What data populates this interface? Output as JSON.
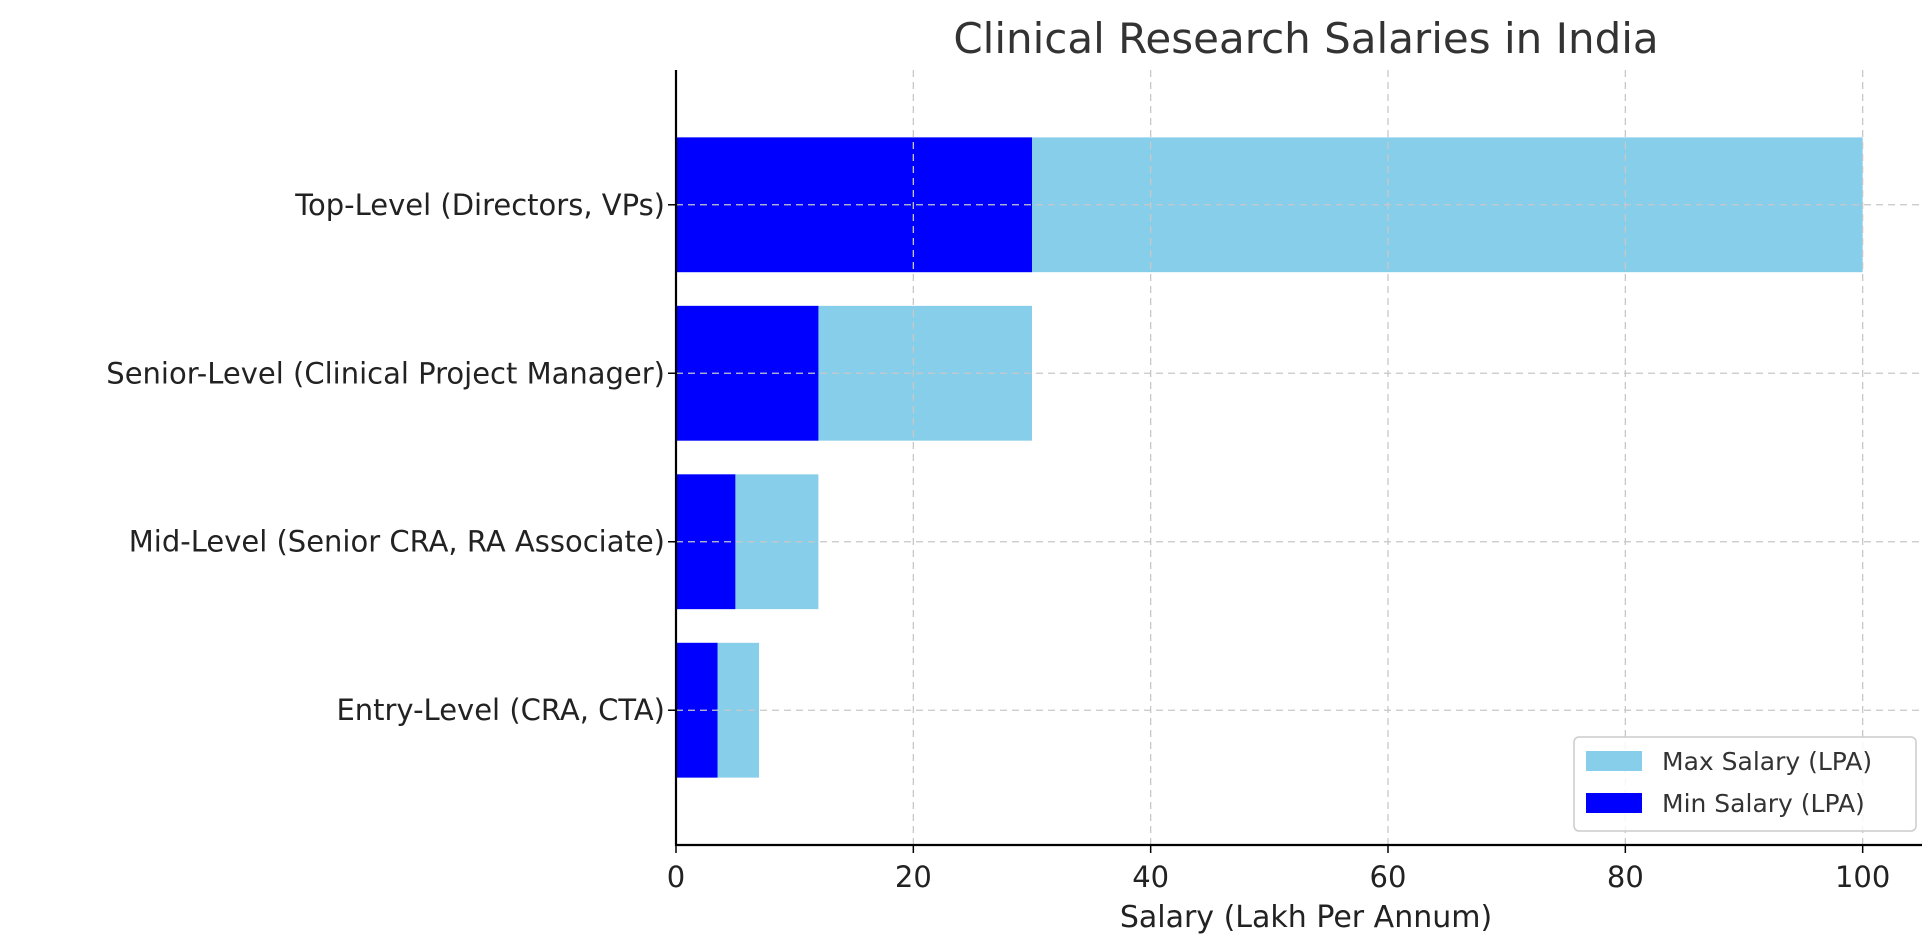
{
  "chart_data": {
    "type": "bar",
    "orientation": "horizontal",
    "stacking": "overlay",
    "title": "Clinical Research Salaries in India",
    "xlabel": "Salary (Lakh Per Annum)",
    "ylabel": "",
    "xlim": [
      0,
      105
    ],
    "xticks": [
      0,
      20,
      40,
      60,
      80,
      100
    ],
    "grid": true,
    "legend_position": "bottom-right",
    "categories": [
      "Entry-Level (CRA, CTA)",
      "Mid-Level (Senior CRA, RA Associate)",
      "Senior-Level (Clinical Project Manager)",
      "Top-Level (Directors, VPs)"
    ],
    "series": [
      {
        "name": "Max Salary (LPA)",
        "color": "#87ceeb",
        "values": [
          7,
          12,
          30,
          100
        ]
      },
      {
        "name": "Min Salary (LPA)",
        "color": "#0000ff",
        "values": [
          3.5,
          5,
          12,
          30
        ]
      }
    ]
  }
}
